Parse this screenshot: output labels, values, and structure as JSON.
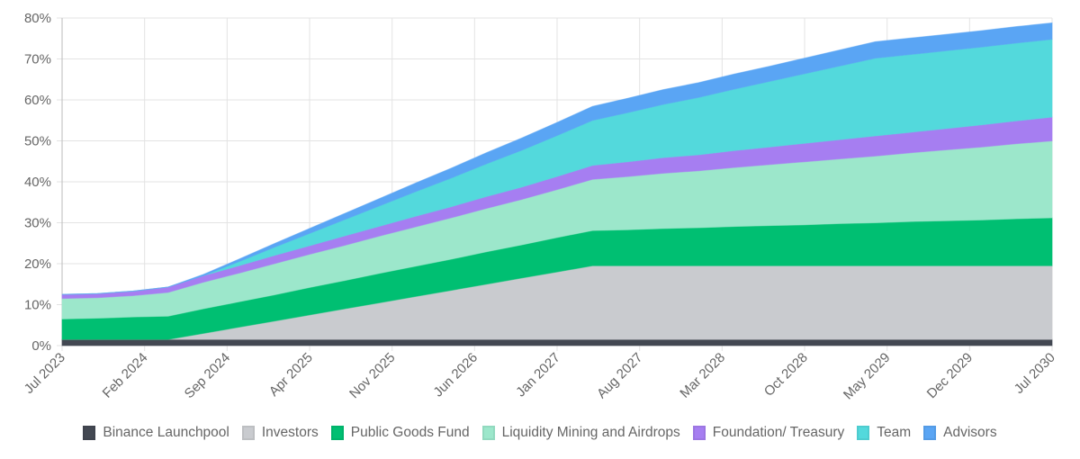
{
  "chart_data": {
    "type": "area",
    "stacked": true,
    "title": "",
    "xlabel": "",
    "ylabel": "",
    "ylim": [
      0,
      80
    ],
    "yticks": [
      "0%",
      "10%",
      "20%",
      "30%",
      "40%",
      "50%",
      "60%",
      "70%",
      "80%"
    ],
    "xticks": [
      "Jul 2023",
      "Feb 2024",
      "Sep 2024",
      "Apr 2025",
      "Nov 2025",
      "Jun 2026",
      "Jan 2027",
      "Aug 2027",
      "Mar 2028",
      "Oct 2028",
      "May 2029",
      "Dec 2029",
      "Jul 2030"
    ],
    "x_months_from_jul_2023": [
      0,
      3,
      6,
      9,
      12,
      15,
      18,
      21,
      24,
      27,
      30,
      33,
      36,
      39,
      42,
      45,
      48,
      51,
      54,
      57,
      60,
      63,
      66,
      69,
      72,
      75,
      78,
      81,
      84
    ],
    "grid": true,
    "legend_position": "bottom",
    "series": [
      {
        "name": "Binance Launchpool",
        "color": "#434852",
        "values": [
          1.5,
          1.5,
          1.5,
          1.5,
          1.5,
          1.5,
          1.5,
          1.5,
          1.5,
          1.5,
          1.5,
          1.5,
          1.5,
          1.5,
          1.5,
          1.5,
          1.5,
          1.5,
          1.5,
          1.5,
          1.5,
          1.5,
          1.5,
          1.5,
          1.5,
          1.5,
          1.5,
          1.5,
          1.5
        ]
      },
      {
        "name": "Investors",
        "color": "#c9cbcf",
        "values": [
          0,
          0,
          0,
          0,
          1.5,
          3,
          4.5,
          6,
          7.5,
          9,
          10.5,
          12,
          13.5,
          15,
          16.5,
          18,
          18,
          18,
          18,
          18,
          18,
          18,
          18,
          18,
          18,
          18,
          18,
          18,
          18
        ]
      },
      {
        "name": "Public Goods Fund",
        "color": "#00bf72",
        "values": [
          5,
          5.2,
          5.5,
          5.7,
          6,
          6.2,
          6.4,
          6.7,
          6.9,
          7.2,
          7.4,
          7.6,
          7.9,
          8.1,
          8.4,
          8.6,
          8.8,
          9.1,
          9.3,
          9.6,
          9.8,
          10,
          10.3,
          10.5,
          10.8,
          11,
          11.2,
          11.5,
          11.7
        ]
      },
      {
        "name": "Liquidity Mining and Airdrops",
        "color": "#9ce7cb",
        "values": [
          5,
          5,
          5.2,
          5.8,
          6.5,
          7,
          7.6,
          8.1,
          8.6,
          9.1,
          9.6,
          10.1,
          10.6,
          11.1,
          11.7,
          12.5,
          13,
          13.5,
          13.9,
          14.4,
          14.9,
          15.4,
          15.8,
          16.3,
          16.8,
          17.3,
          17.8,
          18.3,
          18.8
        ]
      },
      {
        "name": "Foundation/ Treasury",
        "color": "#a67ef1",
        "values": [
          1,
          1,
          1.1,
          1.3,
          1.6,
          1.8,
          2,
          2.1,
          2.3,
          2.4,
          2.6,
          2.7,
          2.9,
          3,
          3.2,
          3.4,
          3.6,
          3.8,
          3.9,
          4.1,
          4.3,
          4.5,
          4.7,
          4.9,
          5,
          5.2,
          5.4,
          5.6,
          5.8
        ]
      },
      {
        "name": "Team",
        "color": "#53d9dc",
        "values": [
          0,
          0,
          0,
          0,
          0,
          1,
          2,
          3,
          4,
          5,
          6,
          7,
          8,
          9,
          10,
          11,
          12,
          13,
          14,
          15,
          16,
          17,
          18,
          19,
          19,
          19,
          19,
          19,
          19
        ]
      },
      {
        "name": "Advisors",
        "color": "#5aa5f4",
        "values": [
          0,
          0,
          0,
          0,
          0.3,
          0.6,
          0.9,
          1.2,
          1.5,
          1.8,
          2.1,
          2.4,
          2.7,
          3,
          3.2,
          3.4,
          3.5,
          3.6,
          3.6,
          3.7,
          3.7,
          3.8,
          3.9,
          4,
          4,
          4,
          4,
          4,
          4
        ]
      }
    ]
  }
}
